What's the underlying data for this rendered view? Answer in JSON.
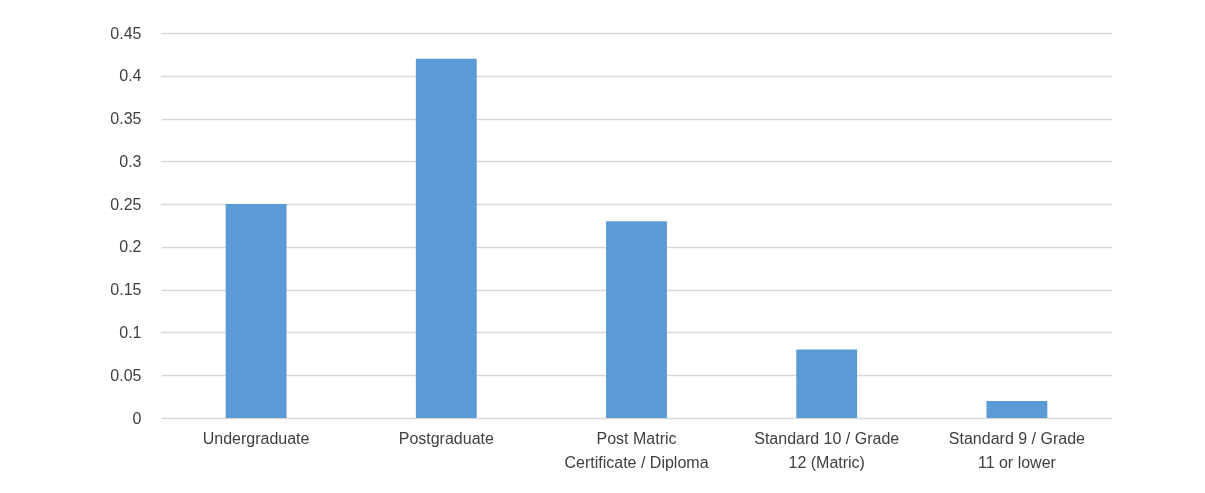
{
  "chart_data": {
    "type": "bar",
    "categories": [
      "Undergraduate",
      "Postgraduate",
      "Post Matric Certificate / Diploma",
      "Standard 10 / Grade 12 (Matric)",
      "Standard 9 / Grade 11 or lower"
    ],
    "values": [
      0.25,
      0.42,
      0.23,
      0.08,
      0.02
    ],
    "color": "#5b9bd5",
    "ylim": [
      0,
      0.45
    ],
    "yticks": [
      0,
      0.05,
      0.1,
      0.15,
      0.2,
      0.25,
      0.3,
      0.35,
      0.4,
      0.45
    ],
    "grid": "y"
  }
}
